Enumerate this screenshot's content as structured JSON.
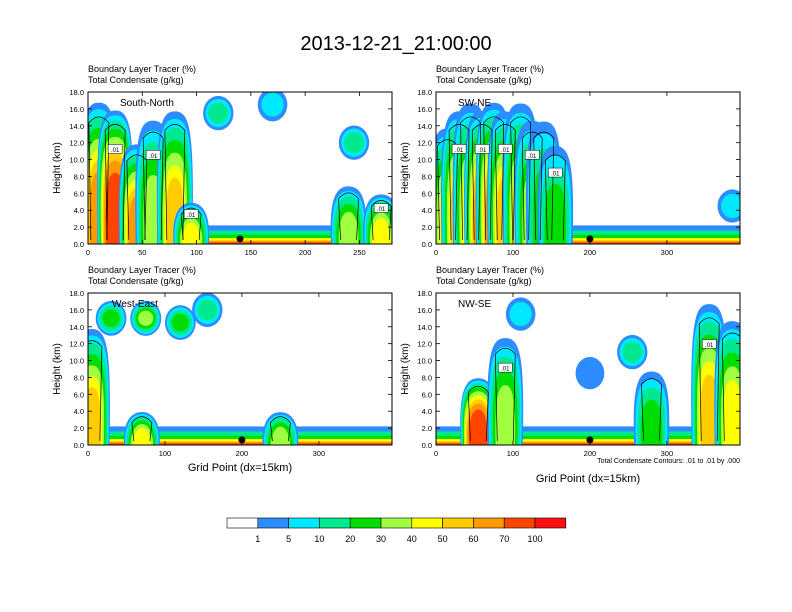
{
  "title": "2013-12-21_21:00:00",
  "chart_data": [
    {
      "type": "heatmap",
      "section_label": "South-North",
      "subtitle_lines": [
        "Boundary Layer Tracer    (%)",
        "Total Condensate    (g/kg)"
      ],
      "ylabel": "Height (km)",
      "xlabel": "",
      "xlim": [
        0,
        280
      ],
      "ylim": [
        0,
        18
      ],
      "xticks": [
        0,
        50,
        100,
        150,
        200,
        250
      ],
      "yticks": [
        0.0,
        2.0,
        4.0,
        6.0,
        8.0,
        10.0,
        12.0,
        14.0,
        16.0,
        18.0
      ],
      "contour_labels": [
        ".01",
        ".01",
        ".01",
        ".01"
      ],
      "marker_x": 140,
      "tracer_columns": [
        {
          "x": 10,
          "top": 17,
          "peak": 75
        },
        {
          "x": 25,
          "top": 16,
          "peak": 100
        },
        {
          "x": 45,
          "top": 12,
          "peak": 70
        },
        {
          "x": 60,
          "top": 15,
          "peak": 40
        },
        {
          "x": 80,
          "top": 16,
          "peak": 60
        },
        {
          "x": 95,
          "top": 5,
          "peak": 50
        },
        {
          "x": 240,
          "top": 7,
          "peak": 40
        },
        {
          "x": 270,
          "top": 6,
          "peak": 50
        }
      ],
      "upper_clouds": [
        {
          "x": 120,
          "y": 15.5,
          "peak": 20
        },
        {
          "x": 170,
          "y": 16.5,
          "peak": 10
        },
        {
          "x": 245,
          "y": 12,
          "peak": 20
        }
      ]
    },
    {
      "type": "heatmap",
      "section_label": "SW-NE",
      "subtitle_lines": [
        "Boundary Layer Tracer    (%)",
        "Total Condensate    (g/kg)"
      ],
      "ylabel": "Height (km)",
      "xlabel": "",
      "xlim": [
        0,
        395
      ],
      "ylim": [
        0,
        18
      ],
      "xticks": [
        0,
        100,
        200,
        300
      ],
      "yticks": [
        0.0,
        2.0,
        4.0,
        6.0,
        8.0,
        10.0,
        12.0,
        14.0,
        16.0,
        18.0
      ],
      "contour_labels": [
        ".01",
        ".01",
        ".01",
        ".01",
        ".01"
      ],
      "marker_x": 200,
      "tracer_columns": [
        {
          "x": 15,
          "top": 14,
          "peak": 50
        },
        {
          "x": 30,
          "top": 16,
          "peak": 60
        },
        {
          "x": 45,
          "top": 17,
          "peak": 50
        },
        {
          "x": 60,
          "top": 16,
          "peak": 70
        },
        {
          "x": 75,
          "top": 17,
          "peak": 70
        },
        {
          "x": 90,
          "top": 16,
          "peak": 60
        },
        {
          "x": 110,
          "top": 17,
          "peak": 50
        },
        {
          "x": 125,
          "top": 15,
          "peak": 40
        },
        {
          "x": 140,
          "top": 15,
          "peak": 30
        },
        {
          "x": 155,
          "top": 12,
          "peak": 30
        }
      ],
      "upper_clouds": [
        {
          "x": 385,
          "y": 4.5,
          "peak": 10
        }
      ]
    },
    {
      "type": "heatmap",
      "section_label": "West-East",
      "subtitle_lines": [
        "Boundary Layer Tracer    (%)",
        "Total Condensate    (g/kg)"
      ],
      "ylabel": "Height (km)",
      "xlabel": "Grid Point (dx=15km)",
      "xlim": [
        0,
        395
      ],
      "ylim": [
        0,
        18
      ],
      "xticks": [
        0,
        100,
        200,
        300
      ],
      "yticks": [
        0.0,
        2.0,
        4.0,
        6.0,
        8.0,
        10.0,
        12.0,
        14.0,
        16.0,
        18.0
      ],
      "contour_labels": [],
      "marker_x": 200,
      "tracer_columns": [
        {
          "x": 5,
          "top": 14,
          "peak": 60
        },
        {
          "x": 70,
          "top": 4,
          "peak": 50
        },
        {
          "x": 250,
          "top": 4,
          "peak": 40
        }
      ],
      "upper_clouds": [
        {
          "x": 30,
          "y": 15,
          "peak": 30
        },
        {
          "x": 75,
          "y": 15,
          "peak": 40
        },
        {
          "x": 120,
          "y": 14.5,
          "peak": 30
        },
        {
          "x": 155,
          "y": 16,
          "peak": 20
        }
      ]
    },
    {
      "type": "heatmap",
      "section_label": "NW-SE",
      "subtitle_lines": [
        "Boundary Layer Tracer    (%)",
        "Total Condensate    (g/kg)"
      ],
      "ylabel": "Height (km)",
      "xlabel": "Grid Point (dx=15km)",
      "footnote": "Total Condensate Contours: .01 to .01 by .000",
      "xlim": [
        0,
        395
      ],
      "ylim": [
        0,
        18
      ],
      "xticks": [
        0,
        100,
        200,
        300
      ],
      "yticks": [
        0.0,
        2.0,
        4.0,
        6.0,
        8.0,
        10.0,
        12.0,
        14.0,
        16.0,
        18.0
      ],
      "contour_labels": [
        ".01",
        ".01"
      ],
      "marker_x": 200,
      "tracer_columns": [
        {
          "x": 55,
          "top": 8,
          "peak": 100
        },
        {
          "x": 90,
          "top": 13,
          "peak": 40
        },
        {
          "x": 280,
          "top": 9,
          "peak": 30
        },
        {
          "x": 355,
          "top": 17,
          "peak": 60
        },
        {
          "x": 385,
          "top": 15,
          "peak": 50
        }
      ],
      "upper_clouds": [
        {
          "x": 110,
          "y": 15.5,
          "peak": 10
        },
        {
          "x": 200,
          "y": 8.5,
          "peak": 5
        },
        {
          "x": 255,
          "y": 11,
          "peak": 20
        }
      ]
    }
  ],
  "colorbar": {
    "tick_labels": [
      "1",
      "5",
      "10",
      "20",
      "30",
      "40",
      "50",
      "60",
      "70",
      "100"
    ],
    "levels": [
      0,
      1,
      5,
      10,
      20,
      30,
      40,
      50,
      60,
      70,
      100
    ],
    "colors": [
      "#ffffff",
      "#2d8cff",
      "#00e8ff",
      "#00e890",
      "#00dd00",
      "#a0ff40",
      "#ffff00",
      "#ffcc00",
      "#ff9900",
      "#ff4400",
      "#ff1010"
    ]
  }
}
